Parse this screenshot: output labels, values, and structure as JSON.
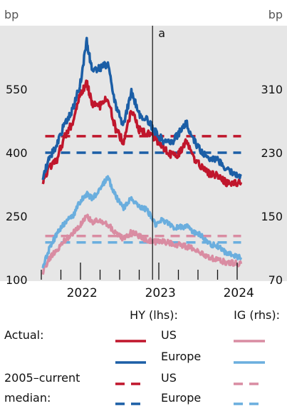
{
  "chart_data": {
    "type": "line",
    "units": {
      "left": "bp",
      "right": "bp"
    },
    "yaxis_left": {
      "ticks": [
        "550",
        "400",
        "250",
        "100"
      ],
      "range": [
        100,
        700
      ]
    },
    "yaxis_right": {
      "ticks": [
        "310",
        "230",
        "150",
        "70"
      ],
      "range": [
        70,
        390
      ]
    },
    "xaxis": {
      "ticks": [
        "2022",
        "2023",
        "2024"
      ],
      "range": [
        2021.5,
        2024.1
      ]
    },
    "annotation": {
      "label": "a",
      "x": 2022.92
    },
    "series": [
      {
        "key": "hy_us",
        "axis": "left",
        "color": "#c0162c",
        "dash": false,
        "x": [
          2021.52,
          2021.6,
          2021.7,
          2021.8,
          2021.9,
          2022.0,
          2022.08,
          2022.15,
          2022.25,
          2022.35,
          2022.45,
          2022.55,
          2022.65,
          2022.75,
          2022.85,
          2022.95,
          2023.05,
          2023.15,
          2023.25,
          2023.35,
          2023.45,
          2023.55,
          2023.65,
          2023.75,
          2023.85,
          2023.95,
          2024.05
        ],
        "y": [
          335,
          365,
          385,
          440,
          470,
          540,
          565,
          515,
          510,
          530,
          455,
          425,
          500,
          455,
          445,
          435,
          415,
          395,
          395,
          430,
          385,
          365,
          350,
          345,
          330,
          325,
          330
        ]
      },
      {
        "key": "hy_eu",
        "axis": "left",
        "color": "#1b5ea6",
        "dash": false,
        "x": [
          2021.52,
          2021.6,
          2021.7,
          2021.8,
          2021.9,
          2022.0,
          2022.08,
          2022.15,
          2022.25,
          2022.35,
          2022.45,
          2022.55,
          2022.65,
          2022.75,
          2022.85,
          2022.95,
          2023.05,
          2023.15,
          2023.25,
          2023.35,
          2023.45,
          2023.55,
          2023.65,
          2023.75,
          2023.85,
          2023.95,
          2024.05
        ],
        "y": [
          345,
          385,
          420,
          470,
          500,
          565,
          665,
          590,
          600,
          610,
          510,
          465,
          545,
          490,
          480,
          450,
          430,
          420,
          445,
          470,
          430,
          400,
          380,
          385,
          360,
          350,
          345
        ]
      },
      {
        "key": "ig_us",
        "axis": "right",
        "color": "#d98ca2",
        "dash": false,
        "x": [
          2021.52,
          2021.6,
          2021.7,
          2021.8,
          2021.9,
          2022.0,
          2022.08,
          2022.15,
          2022.25,
          2022.35,
          2022.45,
          2022.55,
          2022.65,
          2022.75,
          2022.85,
          2022.95,
          2023.05,
          2023.15,
          2023.25,
          2023.35,
          2023.45,
          2023.55,
          2023.65,
          2023.75,
          2023.85,
          2023.95,
          2024.05
        ],
        "y": [
          80,
          96,
          108,
          120,
          128,
          140,
          150,
          142,
          145,
          140,
          128,
          122,
          130,
          125,
          120,
          118,
          118,
          116,
          114,
          112,
          108,
          103,
          98,
          95,
          92,
          91,
          90
        ]
      },
      {
        "key": "ig_eu",
        "axis": "right",
        "color": "#6aaede",
        "dash": false,
        "x": [
          2021.52,
          2021.6,
          2021.7,
          2021.8,
          2021.9,
          2022.0,
          2022.08,
          2022.15,
          2022.25,
          2022.35,
          2022.45,
          2022.55,
          2022.65,
          2022.75,
          2022.85,
          2022.95,
          2023.05,
          2023.15,
          2023.25,
          2023.35,
          2023.45,
          2023.55,
          2023.65,
          2023.75,
          2023.85,
          2023.95,
          2024.05
        ],
        "y": [
          88,
          108,
          128,
          142,
          150,
          170,
          178,
          172,
          185,
          198,
          175,
          160,
          172,
          162,
          158,
          140,
          145,
          138,
          135,
          138,
          130,
          125,
          115,
          112,
          105,
          100,
          98
        ]
      },
      {
        "key": "hy_us_median",
        "axis": "left",
        "color": "#c0162c",
        "dash": true,
        "x": [
          2021.55,
          2024.05
        ],
        "y": [
          439,
          439
        ]
      },
      {
        "key": "hy_eu_median",
        "axis": "left",
        "color": "#1b5ea6",
        "dash": true,
        "x": [
          2021.55,
          2024.05
        ],
        "y": [
          400,
          400
        ]
      },
      {
        "key": "ig_us_median",
        "axis": "right",
        "color": "#d98ca2",
        "dash": true,
        "x": [
          2021.55,
          2024.05
        ],
        "y": [
          125,
          125
        ]
      },
      {
        "key": "ig_eu_median",
        "axis": "right",
        "color": "#6aaede",
        "dash": true,
        "x": [
          2021.55,
          2024.05
        ],
        "y": [
          117,
          117
        ]
      }
    ],
    "legend": {
      "hy_header": "HY (lhs):",
      "ig_header": "IG (rhs):",
      "rows": [
        {
          "label": "Actual:",
          "name": "US",
          "hy": "hy_us",
          "ig": "ig_us"
        },
        {
          "label": "",
          "name": "Europe",
          "hy": "hy_eu",
          "ig": "ig_eu"
        },
        {
          "label": "2005–current",
          "name": "US",
          "hy": "hy_us_median",
          "ig": "ig_us_median"
        },
        {
          "label": "median:",
          "name": "Europe",
          "hy": "hy_eu_median",
          "ig": "ig_eu_median"
        }
      ]
    },
    "grid": false,
    "legend_position": "bottom"
  }
}
